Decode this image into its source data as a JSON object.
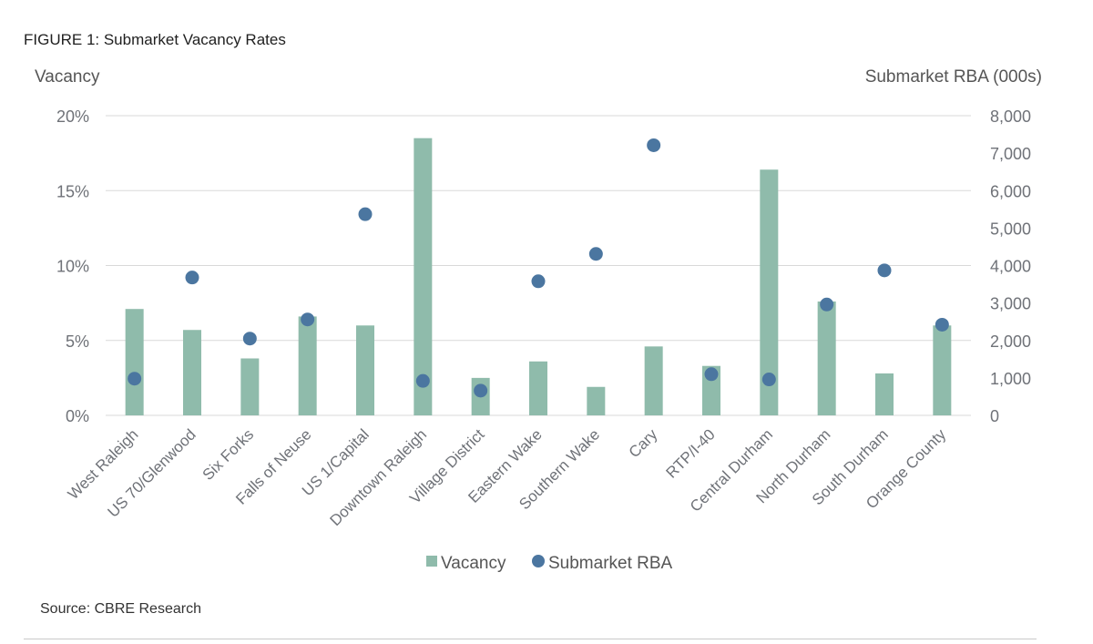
{
  "figure_title": "FIGURE 1: Submarket Vacancy Rates",
  "source": "Source: CBRE Research",
  "colors": {
    "bar": "#8fbbab",
    "dot": "#4b76a0",
    "grid": "#d9d9d9"
  },
  "chart_data": {
    "type": "bar",
    "title": "FIGURE 1: Submarket Vacancy Rates",
    "categories": [
      "West Raleigh",
      "US 70/Glenwood",
      "Six Forks",
      "Falls of Neuse",
      "US 1/Capital",
      "Downtown Raleigh",
      "Village District",
      "Eastern Wake",
      "Southern Wake",
      "Cary",
      "RTP/I-40",
      "Central Durham",
      "North Durham",
      "South Durham",
      "Orange County"
    ],
    "series": [
      {
        "name": "Vacancy",
        "type": "bar",
        "axis": "left",
        "values": [
          7.1,
          5.7,
          3.8,
          6.6,
          6.0,
          18.5,
          2.5,
          3.6,
          1.9,
          4.6,
          3.3,
          16.4,
          7.6,
          2.8,
          6.0
        ]
      },
      {
        "name": "Submarket RBA",
        "type": "scatter",
        "axis": "right",
        "values": [
          980,
          3680,
          2050,
          2560,
          5370,
          920,
          660,
          3580,
          4310,
          7210,
          1100,
          960,
          2960,
          3870,
          2420
        ]
      }
    ],
    "ylabel": "Vacancy",
    "y2label": "Submarket RBA (000s)",
    "ylim": [
      0,
      20
    ],
    "y2lim": [
      0,
      8000
    ],
    "yticks": [
      "0%",
      "5%",
      "10%",
      "15%",
      "20%"
    ],
    "y2ticks": [
      "0",
      "1,000",
      "2,000",
      "3,000",
      "4,000",
      "5,000",
      "6,000",
      "7,000",
      "8,000"
    ],
    "legend": [
      "Vacancy",
      "Submarket RBA"
    ],
    "legend_position": "bottom",
    "grid": true
  }
}
